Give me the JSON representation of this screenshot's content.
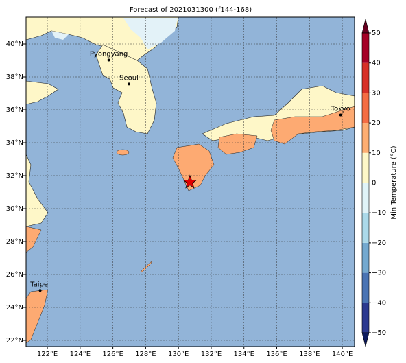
{
  "title": "Forecast of 2021031300 (f144-168)",
  "map": {
    "xlim": [
      120.7,
      140.75
    ],
    "ylim": [
      21.625,
      41.625
    ],
    "xticks": [
      {
        "value": 122,
        "label": "122°E"
      },
      {
        "value": 124,
        "label": "124°E"
      },
      {
        "value": 126,
        "label": "126°E"
      },
      {
        "value": 128,
        "label": "128°E"
      },
      {
        "value": 130,
        "label": "130°E"
      },
      {
        "value": 132,
        "label": "132°E"
      },
      {
        "value": 134,
        "label": "134°E"
      },
      {
        "value": 136,
        "label": "136°E"
      },
      {
        "value": 138,
        "label": "138°E"
      },
      {
        "value": 140,
        "label": "140°E"
      }
    ],
    "yticks": [
      {
        "value": 22,
        "label": "22°N"
      },
      {
        "value": 24,
        "label": "24°N"
      },
      {
        "value": 26,
        "label": "26°N"
      },
      {
        "value": 28,
        "label": "28°N"
      },
      {
        "value": 30,
        "label": "30°N"
      },
      {
        "value": 32,
        "label": "32°N"
      },
      {
        "value": 34,
        "label": "34°N"
      },
      {
        "value": 36,
        "label": "36°N"
      },
      {
        "value": 38,
        "label": "38°N"
      },
      {
        "value": 40,
        "label": "40°N"
      }
    ],
    "ocean_color": "#92b4d8",
    "cities": [
      {
        "name": "Pyongyang",
        "lon": 125.75,
        "lat": 39.02
      },
      {
        "name": "Seoul",
        "lon": 126.98,
        "lat": 37.57
      },
      {
        "name": "Tokyo",
        "lon": 139.9,
        "lat": 35.69
      },
      {
        "name": "Taipei",
        "lon": 121.56,
        "lat": 25.03
      }
    ],
    "marker": {
      "lon": 130.7,
      "lat": 31.6,
      "color": "#e00000"
    }
  },
  "colorbar": {
    "label": "Min Temperature (°C)",
    "ticks": [
      {
        "value": -50,
        "label": "−50"
      },
      {
        "value": -40,
        "label": "−40"
      },
      {
        "value": -30,
        "label": "−30"
      },
      {
        "value": -20,
        "label": "−20"
      },
      {
        "value": -10,
        "label": "−10"
      },
      0,
      10,
      20,
      30,
      40,
      50
    ],
    "colors": [
      "#2b3990",
      "#4a74b4",
      "#74a9cf",
      "#abd9e9",
      "#e0f3f8",
      "#fef7c8",
      "#fdae72",
      "#f46d43",
      "#d73027",
      "#a50026"
    ],
    "under_color": "#0c1a5e",
    "over_color": "#67001f"
  }
}
